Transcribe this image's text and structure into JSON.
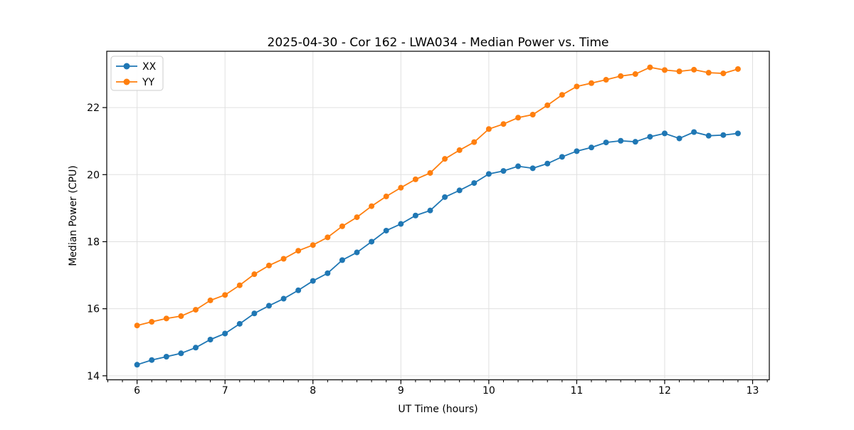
{
  "chart_data": {
    "type": "line",
    "title": "2025-04-30 - Cor 162 - LWA034 - Median Power vs. Time",
    "xlabel": "UT Time (hours)",
    "ylabel": "Median Power (CPU)",
    "xlim": [
      5.655,
      13.19
    ],
    "ylim": [
      13.88,
      23.68
    ],
    "x_major_ticks": [
      6,
      7,
      8,
      9,
      10,
      11,
      12,
      13
    ],
    "x_minor_tick_interval": 0.16667,
    "y_major_ticks": [
      14,
      16,
      18,
      20,
      22
    ],
    "grid": "major-both",
    "legend_position": "upper-left",
    "marker": "circle",
    "x": [
      6,
      6.1667,
      6.3333,
      6.5,
      6.6667,
      6.8333,
      7,
      7.1667,
      7.3333,
      7.5,
      7.6667,
      7.8333,
      8,
      8.1667,
      8.3333,
      8.5,
      8.6667,
      8.8333,
      9,
      9.1667,
      9.3333,
      9.5,
      9.6667,
      9.8333,
      10,
      10.1667,
      10.3333,
      10.5,
      10.6667,
      10.8333,
      11,
      11.1667,
      11.3333,
      11.5,
      11.6667,
      11.8333,
      12,
      12.1667,
      12.3333,
      12.5,
      12.6667,
      12.8333
    ],
    "series": [
      {
        "name": "XX",
        "color": "#1f77b4",
        "values": [
          14.33,
          14.47,
          14.57,
          14.67,
          14.84,
          15.08,
          15.26,
          15.55,
          15.86,
          16.09,
          16.3,
          16.55,
          16.83,
          17.06,
          17.45,
          17.68,
          18.0,
          18.33,
          18.53,
          18.78,
          18.93,
          19.33,
          19.53,
          19.75,
          20.02,
          20.11,
          20.25,
          20.19,
          20.33,
          20.53,
          20.7,
          20.81,
          20.96,
          21.01,
          20.98,
          21.13,
          21.23,
          21.08,
          21.27,
          21.16,
          21.18,
          21.23
        ]
      },
      {
        "name": "YY",
        "color": "#ff7f0e",
        "values": [
          15.5,
          15.61,
          15.71,
          15.78,
          15.97,
          16.25,
          16.41,
          16.7,
          17.03,
          17.29,
          17.49,
          17.73,
          17.9,
          18.13,
          18.46,
          18.73,
          19.06,
          19.35,
          19.61,
          19.86,
          20.05,
          20.47,
          20.73,
          20.97,
          21.36,
          21.51,
          21.7,
          21.79,
          22.07,
          22.38,
          22.63,
          22.73,
          22.83,
          22.94,
          23.0,
          23.2,
          23.12,
          23.08,
          23.13,
          23.04,
          23.02,
          23.15
        ]
      }
    ]
  },
  "style": {
    "grid_color": "#e0e0e0",
    "spine_color": "#000000",
    "background": "#ffffff",
    "legend_border": "#cccccc"
  }
}
